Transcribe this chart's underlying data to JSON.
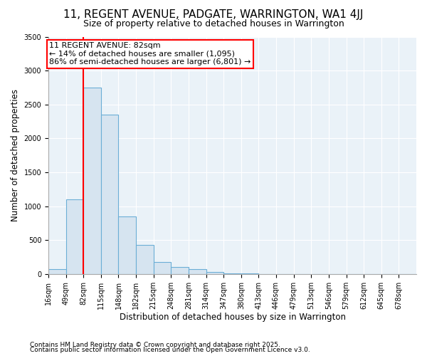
{
  "title": "11, REGENT AVENUE, PADGATE, WARRINGTON, WA1 4JJ",
  "subtitle": "Size of property relative to detached houses in Warrington",
  "xlabel": "Distribution of detached houses by size in Warrington",
  "ylabel": "Number of detached properties",
  "footnote1": "Contains HM Land Registry data © Crown copyright and database right 2025.",
  "footnote2": "Contains public sector information licensed under the Open Government Licence v3.0.",
  "annotation_line1": "11 REGENT AVENUE: 82sqm",
  "annotation_line2": "← 14% of detached houses are smaller (1,095)",
  "annotation_line3": "86% of semi-detached houses are larger (6,801) →",
  "bar_labels": [
    "16sqm",
    "49sqm",
    "82sqm",
    "115sqm",
    "148sqm",
    "182sqm",
    "215sqm",
    "248sqm",
    "281sqm",
    "314sqm",
    "347sqm",
    "380sqm",
    "413sqm",
    "446sqm",
    "479sqm",
    "513sqm",
    "546sqm",
    "579sqm",
    "612sqm",
    "645sqm",
    "678sqm"
  ],
  "bar_values": [
    75,
    1100,
    2750,
    2350,
    850,
    425,
    175,
    100,
    75,
    30,
    10,
    5,
    3,
    1,
    0,
    0,
    0,
    0,
    0,
    0,
    0
  ],
  "bar_color": "#d6e4f0",
  "bar_edge_color": "#6baed6",
  "red_line_index": 2,
  "ylim": [
    0,
    3500
  ],
  "yticks": [
    0,
    500,
    1000,
    1500,
    2000,
    2500,
    3000,
    3500
  ],
  "title_fontsize": 11,
  "subtitle_fontsize": 9,
  "xlabel_fontsize": 8.5,
  "ylabel_fontsize": 8.5,
  "tick_fontsize": 7,
  "annotation_fontsize": 8,
  "footnote_fontsize": 6.5,
  "plot_bg_color": "#eaf2f8"
}
